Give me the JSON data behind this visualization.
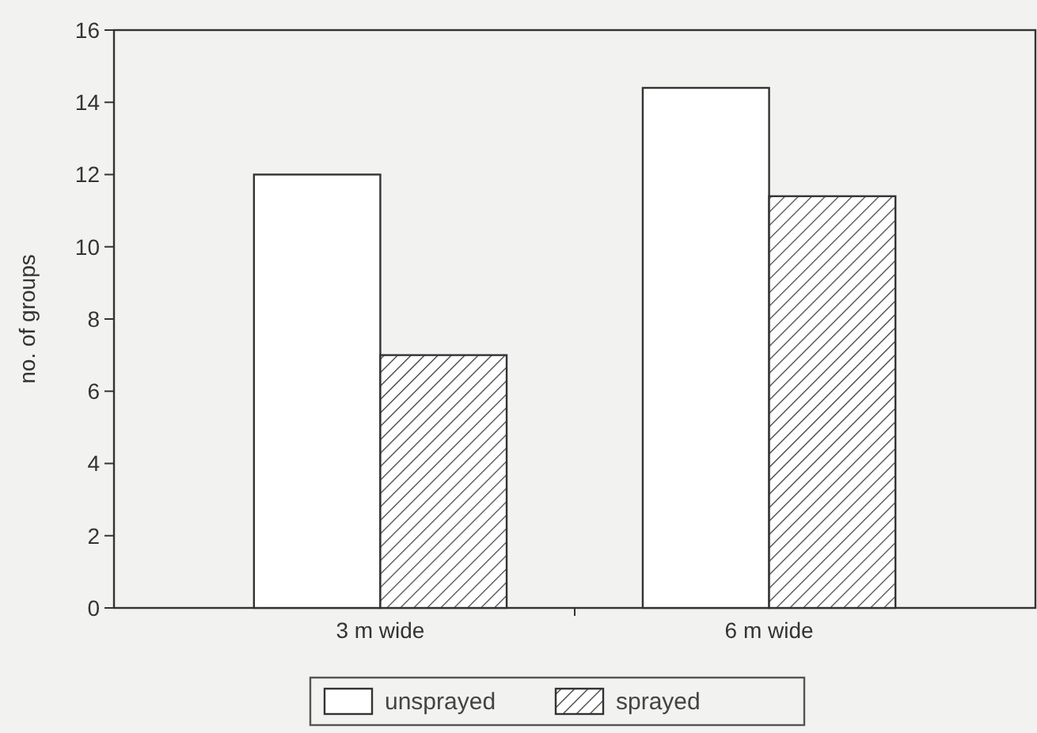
{
  "chart_data": {
    "type": "bar",
    "ylabel": "no. of groups",
    "categories": [
      "3 m wide",
      "6 m wide"
    ],
    "series": [
      {
        "name": "unsprayed",
        "color": "#ffffff",
        "values": [
          12,
          14.4
        ]
      },
      {
        "name": "sprayed",
        "color": "#333333",
        "values": [
          7,
          11.4
        ]
      }
    ],
    "ylim": [
      0,
      16
    ],
    "yticks": [
      0,
      2,
      4,
      6,
      8,
      10,
      12,
      14,
      16
    ],
    "grid": false,
    "legend": "bottom"
  }
}
